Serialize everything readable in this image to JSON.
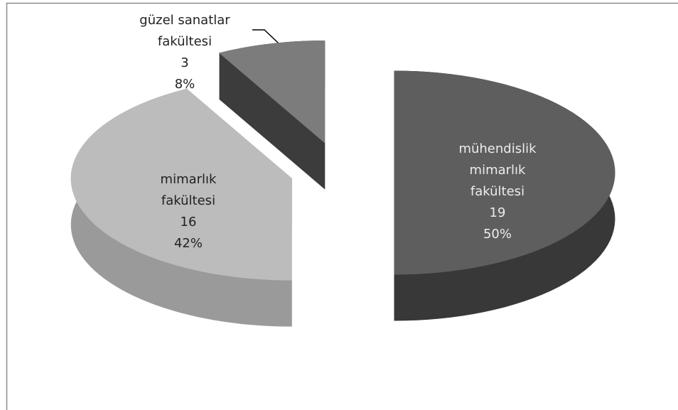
{
  "chart_data": {
    "type": "pie3d",
    "categories": [
      "mühendislik mimarlık fakültesi",
      "mimarlık fakültesi",
      "güzel sanatlar fakültesi"
    ],
    "values": [
      19,
      16,
      3
    ],
    "percent_labels": [
      "50%",
      "42%",
      "8%"
    ],
    "colors": [
      "#5e5e5e",
      "#bcbcbc",
      "#7c7c7c"
    ],
    "side_colors": [
      "#383838",
      "#9a9a9a",
      "#3c3c3c"
    ],
    "label_colors": [
      "#ececec",
      "#222222",
      "#222222"
    ]
  }
}
